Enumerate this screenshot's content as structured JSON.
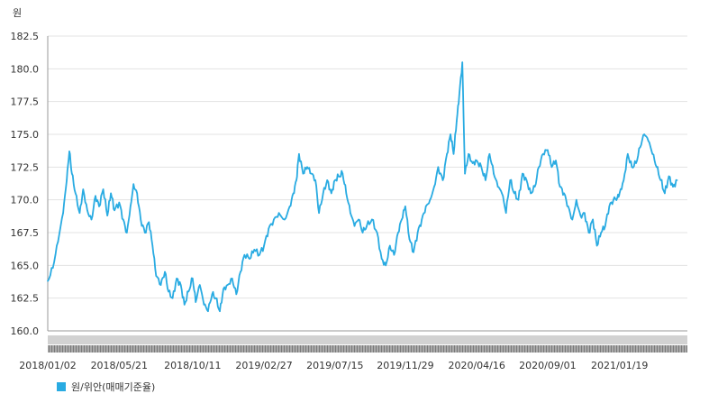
{
  "chart_data": {
    "type": "line",
    "ylabel": "원",
    "y_ticks": [
      "160.0",
      "162.5",
      "165.0",
      "167.5",
      "170.0",
      "172.5",
      "175.0",
      "177.5",
      "180.0",
      "182.5"
    ],
    "ylim": [
      160,
      182.5
    ],
    "x_ticks": [
      "2018/01/02",
      "2018/05/21",
      "2018/10/11",
      "2019/02/27",
      "2019/07/15",
      "2019/11/29",
      "2020/04/16",
      "2020/09/01",
      "2021/01/19"
    ],
    "xlim": [
      "2018/01/02",
      "2021/05/31"
    ],
    "grid": "horizontal",
    "legend_position": "bottom-left",
    "series": [
      {
        "name": "원/위안(매매기준율)",
        "color": "#29abe2",
        "points": [
          [
            "2018/01/02",
            163.8
          ],
          [
            "2018/01/12",
            164.8
          ],
          [
            "2018/01/22",
            166.8
          ],
          [
            "2018/02/01",
            169.0
          ],
          [
            "2018/02/08",
            171.5
          ],
          [
            "2018/02/13",
            173.7
          ],
          [
            "2018/02/18",
            172.0
          ],
          [
            "2018/02/25",
            170.5
          ],
          [
            "2018/03/05",
            169.0
          ],
          [
            "2018/03/12",
            170.8
          ],
          [
            "2018/03/20",
            169.2
          ],
          [
            "2018/03/28",
            168.5
          ],
          [
            "2018/04/05",
            170.3
          ],
          [
            "2018/04/12",
            169.5
          ],
          [
            "2018/04/20",
            170.8
          ],
          [
            "2018/04/28",
            168.8
          ],
          [
            "2018/05/05",
            170.5
          ],
          [
            "2018/05/12",
            169.2
          ],
          [
            "2018/05/21",
            169.8
          ],
          [
            "2018/05/29",
            168.5
          ],
          [
            "2018/06/05",
            167.5
          ],
          [
            "2018/06/12",
            169.5
          ],
          [
            "2018/06/18",
            171.2
          ],
          [
            "2018/06/25",
            170.5
          ],
          [
            "2018/07/02",
            168.5
          ],
          [
            "2018/07/10",
            167.5
          ],
          [
            "2018/07/18",
            168.3
          ],
          [
            "2018/07/25",
            166.5
          ],
          [
            "2018/08/01",
            164.2
          ],
          [
            "2018/08/10",
            163.5
          ],
          [
            "2018/08/18",
            164.5
          ],
          [
            "2018/08/25",
            163.0
          ],
          [
            "2018/09/02",
            162.5
          ],
          [
            "2018/09/10",
            164.0
          ],
          [
            "2018/09/18",
            163.5
          ],
          [
            "2018/09/25",
            162.0
          ],
          [
            "2018/10/03",
            163.0
          ],
          [
            "2018/10/11",
            164.0
          ],
          [
            "2018/10/17",
            162.2
          ],
          [
            "2018/10/25",
            163.5
          ],
          [
            "2018/11/02",
            162.0
          ],
          [
            "2018/11/10",
            161.5
          ],
          [
            "2018/11/18",
            162.8
          ],
          [
            "2018/11/25",
            162.5
          ],
          [
            "2018/12/03",
            161.5
          ],
          [
            "2018/12/10",
            163.2
          ],
          [
            "2018/12/18",
            163.5
          ],
          [
            "2018/12/27",
            164.0
          ],
          [
            "2019/01/04",
            162.8
          ],
          [
            "2019/01/12",
            164.5
          ],
          [
            "2019/01/20",
            165.8
          ],
          [
            "2019/01/30",
            165.5
          ],
          [
            "2019/02/08",
            166.2
          ],
          [
            "2019/02/18",
            165.8
          ],
          [
            "2019/02/27",
            166.5
          ],
          [
            "2019/03/08",
            167.8
          ],
          [
            "2019/03/18",
            168.5
          ],
          [
            "2019/03/28",
            169.0
          ],
          [
            "2019/04/08",
            168.5
          ],
          [
            "2019/04/18",
            169.5
          ],
          [
            "2019/04/25",
            170.5
          ],
          [
            "2019/05/01",
            171.5
          ],
          [
            "2019/05/06",
            173.5
          ],
          [
            "2019/05/14",
            172.0
          ],
          [
            "2019/05/22",
            172.5
          ],
          [
            "2019/05/30",
            172.0
          ],
          [
            "2019/06/07",
            171.5
          ],
          [
            "2019/06/14",
            169.0
          ],
          [
            "2019/06/22",
            170.5
          ],
          [
            "2019/06/30",
            171.5
          ],
          [
            "2019/07/08",
            170.5
          ],
          [
            "2019/07/15",
            171.5
          ],
          [
            "2019/07/22",
            171.8
          ],
          [
            "2019/07/30",
            172.0
          ],
          [
            "2019/08/06",
            170.5
          ],
          [
            "2019/08/14",
            169.0
          ],
          [
            "2019/08/22",
            168.0
          ],
          [
            "2019/08/30",
            168.5
          ],
          [
            "2019/09/07",
            167.5
          ],
          [
            "2019/09/15",
            168.0
          ],
          [
            "2019/09/25",
            168.5
          ],
          [
            "2019/10/05",
            167.5
          ],
          [
            "2019/10/14",
            165.5
          ],
          [
            "2019/10/22",
            165.0
          ],
          [
            "2019/10/30",
            166.5
          ],
          [
            "2019/11/07",
            165.8
          ],
          [
            "2019/11/15",
            167.5
          ],
          [
            "2019/11/22",
            168.5
          ],
          [
            "2019/11/29",
            169.5
          ],
          [
            "2019/12/07",
            167.0
          ],
          [
            "2019/12/15",
            166.0
          ],
          [
            "2019/12/23",
            167.5
          ],
          [
            "2019/12/31",
            168.5
          ],
          [
            "2020/01/08",
            169.5
          ],
          [
            "2020/01/16",
            170.0
          ],
          [
            "2020/01/24",
            171.0
          ],
          [
            "2020/02/01",
            172.5
          ],
          [
            "2020/02/10",
            171.5
          ],
          [
            "2020/02/18",
            173.5
          ],
          [
            "2020/02/25",
            175.0
          ],
          [
            "2020/03/02",
            173.5
          ],
          [
            "2020/03/08",
            176.0
          ],
          [
            "2020/03/13",
            178.0
          ],
          [
            "2020/03/19",
            180.5
          ],
          [
            "2020/03/24",
            172.0
          ],
          [
            "2020/03/31",
            173.5
          ],
          [
            "2020/04/08",
            172.8
          ],
          [
            "2020/04/16",
            173.0
          ],
          [
            "2020/04/25",
            172.5
          ],
          [
            "2020/05/03",
            171.5
          ],
          [
            "2020/05/11",
            173.5
          ],
          [
            "2020/05/19",
            172.0
          ],
          [
            "2020/05/27",
            171.0
          ],
          [
            "2020/06/04",
            170.5
          ],
          [
            "2020/06/12",
            169.0
          ],
          [
            "2020/06/20",
            171.5
          ],
          [
            "2020/06/28",
            170.5
          ],
          [
            "2020/07/06",
            170.0
          ],
          [
            "2020/07/14",
            172.0
          ],
          [
            "2020/07/22",
            171.5
          ],
          [
            "2020/07/30",
            170.5
          ],
          [
            "2020/08/07",
            171.0
          ],
          [
            "2020/08/15",
            172.5
          ],
          [
            "2020/08/23",
            173.5
          ],
          [
            "2020/09/01",
            173.8
          ],
          [
            "2020/09/09",
            172.5
          ],
          [
            "2020/09/17",
            173.0
          ],
          [
            "2020/09/25",
            171.0
          ],
          [
            "2020/10/03",
            170.5
          ],
          [
            "2020/10/11",
            169.5
          ],
          [
            "2020/10/19",
            168.5
          ],
          [
            "2020/10/27",
            170.0
          ],
          [
            "2020/11/04",
            168.8
          ],
          [
            "2020/11/12",
            169.0
          ],
          [
            "2020/11/20",
            167.5
          ],
          [
            "2020/11/28",
            168.5
          ],
          [
            "2020/12/06",
            166.5
          ],
          [
            "2020/12/14",
            167.5
          ],
          [
            "2020/12/22",
            168.0
          ],
          [
            "2020/12/30",
            169.5
          ],
          [
            "2021/01/07",
            170.0
          ],
          [
            "2021/01/15",
            170.2
          ],
          [
            "2021/01/19",
            170.5
          ],
          [
            "2021/01/27",
            171.5
          ],
          [
            "2021/02/04",
            173.5
          ],
          [
            "2021/02/12",
            172.5
          ],
          [
            "2021/02/20",
            172.8
          ],
          [
            "2021/02/28",
            174.0
          ],
          [
            "2021/03/08",
            175.0
          ],
          [
            "2021/03/16",
            174.5
          ],
          [
            "2021/03/24",
            173.5
          ],
          [
            "2021/04/01",
            172.5
          ],
          [
            "2021/04/09",
            171.5
          ],
          [
            "2021/04/17",
            170.5
          ],
          [
            "2021/04/25",
            171.8
          ],
          [
            "2021/05/03",
            171.0
          ],
          [
            "2021/05/11",
            171.5
          ]
        ]
      }
    ]
  }
}
